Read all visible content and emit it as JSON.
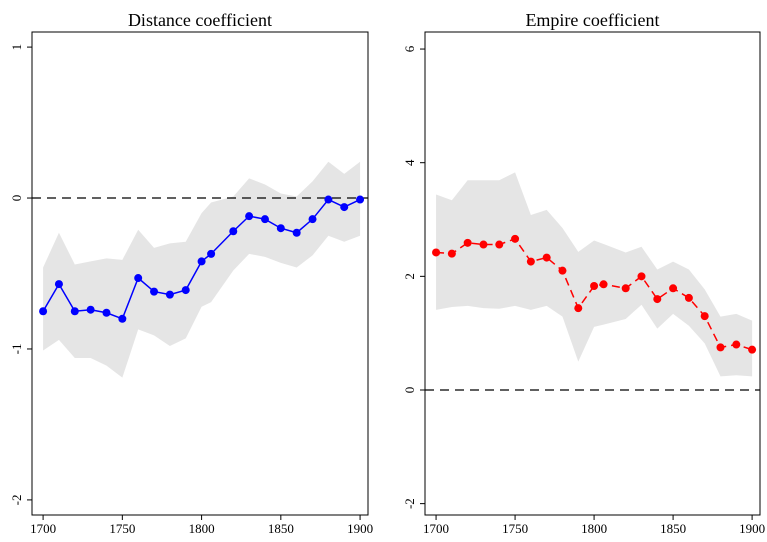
{
  "chart_data": [
    {
      "type": "line",
      "title": "Distance coefficient",
      "x": [
        1700,
        1710,
        1720,
        1730,
        1740,
        1750,
        1760,
        1770,
        1780,
        1790,
        1800,
        1806,
        1820,
        1830,
        1840,
        1850,
        1860,
        1870,
        1880,
        1890,
        1900
      ],
      "series": [
        {
          "color": "#0000ff",
          "dashed": false,
          "values": [
            -0.75,
            -0.57,
            -0.75,
            -0.74,
            -0.76,
            -0.8,
            -0.53,
            -0.62,
            -0.64,
            -0.61,
            -0.42,
            -0.37,
            -0.22,
            -0.12,
            -0.14,
            -0.2,
            -0.23,
            -0.14,
            -0.01,
            -0.06,
            -0.01
          ],
          "band_upper": [
            -0.46,
            -0.23,
            -0.44,
            -0.42,
            -0.4,
            -0.41,
            -0.21,
            -0.33,
            -0.3,
            -0.29,
            -0.1,
            -0.03,
            0.01,
            0.13,
            0.09,
            0.03,
            0.01,
            0.11,
            0.24,
            0.16,
            0.24
          ],
          "band_lower": [
            -1.01,
            -0.94,
            -1.06,
            -1.06,
            -1.11,
            -1.19,
            -0.87,
            -0.91,
            -0.98,
            -0.93,
            -0.72,
            -0.69,
            -0.48,
            -0.37,
            -0.39,
            -0.43,
            -0.46,
            -0.38,
            -0.25,
            -0.29,
            -0.25
          ],
          "band_color": "#e5e5e5"
        }
      ],
      "reference_line": 0,
      "xlim": [
        1693,
        1905
      ],
      "xticks": [
        1700,
        1750,
        1800,
        1850,
        1900
      ],
      "ylim": [
        -2.1,
        1.1
      ],
      "yticks": [
        -2,
        -1,
        0,
        1
      ]
    },
    {
      "type": "line",
      "title": "Empire coefficient",
      "x": [
        1700,
        1710,
        1720,
        1730,
        1740,
        1750,
        1760,
        1770,
        1780,
        1790,
        1800,
        1806,
        1820,
        1830,
        1840,
        1850,
        1860,
        1870,
        1880,
        1890,
        1900
      ],
      "series": [
        {
          "color": "#ff0000",
          "dashed": true,
          "values": [
            2.42,
            2.4,
            2.59,
            2.56,
            2.56,
            2.66,
            2.26,
            2.33,
            2.1,
            1.44,
            1.83,
            1.86,
            1.79,
            2.0,
            1.6,
            1.79,
            1.62,
            1.3,
            0.75,
            0.8,
            0.71
          ],
          "band_upper": [
            3.44,
            3.34,
            3.69,
            3.69,
            3.69,
            3.83,
            3.08,
            3.17,
            2.85,
            2.43,
            2.63,
            2.57,
            2.42,
            2.52,
            2.12,
            2.26,
            2.12,
            1.77,
            1.29,
            1.34,
            1.22
          ],
          "band_lower": [
            1.41,
            1.46,
            1.48,
            1.44,
            1.43,
            1.48,
            1.41,
            1.48,
            1.29,
            0.5,
            1.11,
            1.15,
            1.25,
            1.5,
            1.08,
            1.34,
            1.13,
            0.82,
            0.24,
            0.26,
            0.24
          ],
          "band_color": "#e5e5e5"
        }
      ],
      "reference_line": 0,
      "xlim": [
        1693,
        1905
      ],
      "xticks": [
        1700,
        1750,
        1800,
        1850,
        1900
      ],
      "ylim": [
        -2.2,
        6.3
      ],
      "yticks": [
        -2,
        0,
        2,
        4,
        6
      ]
    }
  ]
}
